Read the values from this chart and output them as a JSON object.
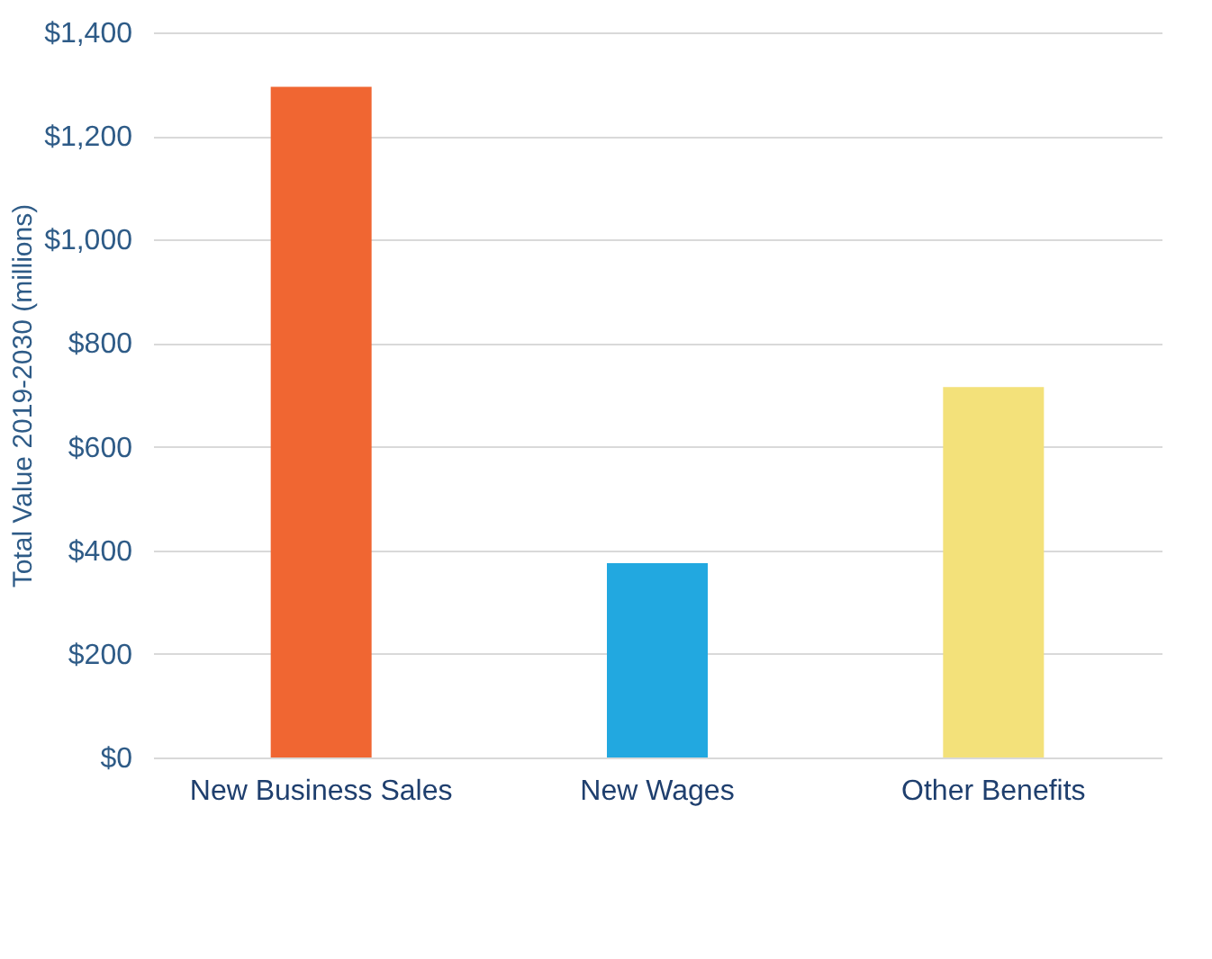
{
  "chart_data": {
    "type": "bar",
    "ylabel": "Total Value 2019-2030 (millions)",
    "categories": [
      "New Business Sales",
      "New Wages",
      "Other Benefits"
    ],
    "values": [
      1295,
      375,
      715
    ],
    "colors": [
      "#f06632",
      "#22a8e0",
      "#f3e17a"
    ],
    "ylim": [
      0,
      1400
    ],
    "yticks": [
      {
        "value": 0,
        "label": "$0"
      },
      {
        "value": 200,
        "label": "$200"
      },
      {
        "value": 400,
        "label": "$400"
      },
      {
        "value": 600,
        "label": "$600"
      },
      {
        "value": 800,
        "label": "$800"
      },
      {
        "value": 1000,
        "label": "$1,000"
      },
      {
        "value": 1200,
        "label": "$1,200"
      },
      {
        "value": 1400,
        "label": "$1,400"
      }
    ],
    "grid": "y"
  }
}
